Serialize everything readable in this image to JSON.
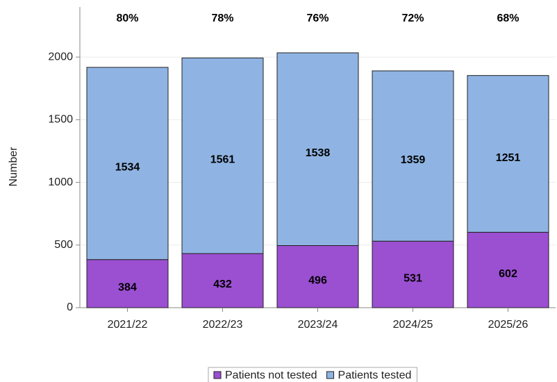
{
  "chart_data": {
    "type": "stacked_bar",
    "ylabel": "Number",
    "categories": [
      "2021/22",
      "2022/23",
      "2023/24",
      "2024/25",
      "2025/26"
    ],
    "series": [
      {
        "name": "Patients not tested",
        "color": "#9b4fd1",
        "values": [
          384,
          432,
          496,
          531,
          602
        ]
      },
      {
        "name": "Patients tested",
        "color": "#8fb4e3",
        "values": [
          1534,
          1561,
          1538,
          1359,
          1251
        ]
      }
    ],
    "annotations": [
      "80%",
      "78%",
      "76%",
      "72%",
      "68%"
    ],
    "ylim": [
      0,
      2400
    ],
    "yticks": [
      0,
      500,
      1000,
      1500,
      2000
    ],
    "grid": true,
    "legend": "bottom"
  }
}
